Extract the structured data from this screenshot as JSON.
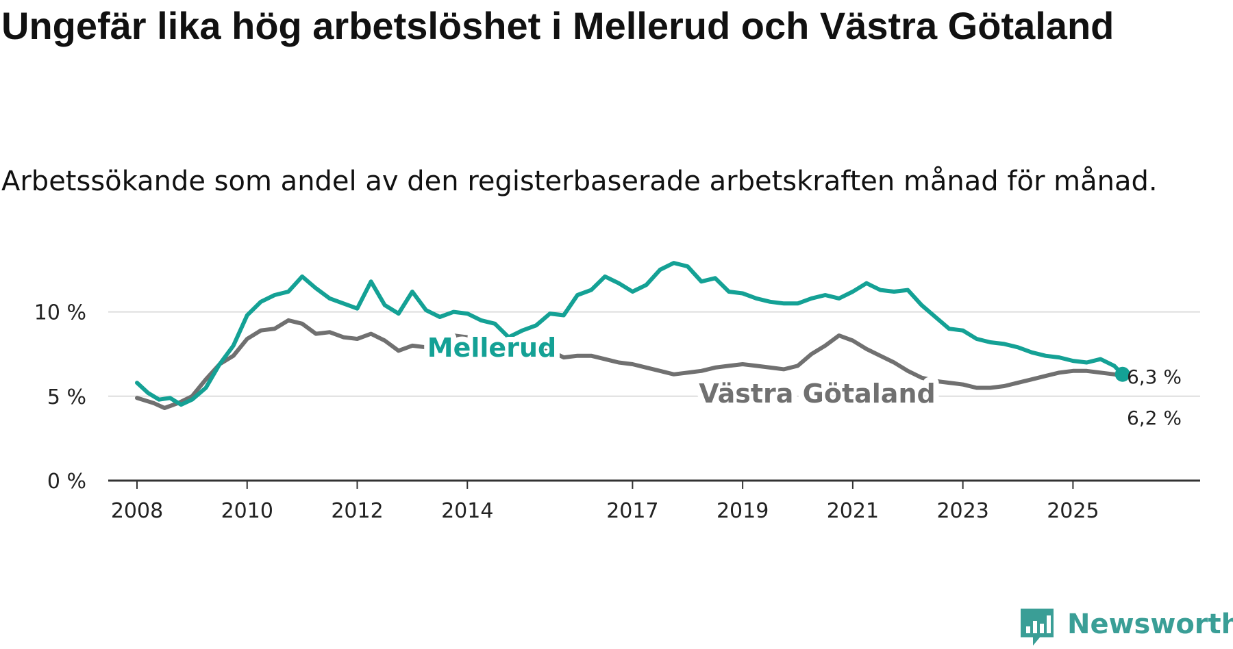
{
  "title": "Ungefär lika hög arbetslöshet i Mellerud och Västra Götaland",
  "subtitle": "Arbetssökande som andel av den registerbaserade arbetskraften månad för månad.",
  "brand": {
    "name": "Newsworthy",
    "icon": "newsworthy-bars-icon",
    "color": "#3a9e96"
  },
  "chart_data": {
    "type": "line",
    "title": "Ungefär lika hög arbetslöshet i Mellerud och Västra Götaland",
    "subtitle": "Arbetssökande som andel av den registerbaserade arbetskraften månad för månad.",
    "xlabel": "",
    "ylabel": "",
    "xlim": [
      2008.0,
      2026.6
    ],
    "ylim": [
      0,
      12.5
    ],
    "grid": true,
    "y_ticks": [
      {
        "value": 0,
        "label": "0 %"
      },
      {
        "value": 5,
        "label": "5 %"
      },
      {
        "value": 10,
        "label": "10 %"
      }
    ],
    "x_ticks": [
      {
        "value": 2008,
        "label": "2008"
      },
      {
        "value": 2010,
        "label": "2010"
      },
      {
        "value": 2012,
        "label": "2012"
      },
      {
        "value": 2014,
        "label": "2014"
      },
      {
        "value": 2017,
        "label": "2017"
      },
      {
        "value": 2019,
        "label": "2019"
      },
      {
        "value": 2021,
        "label": "2021"
      },
      {
        "value": 2023,
        "label": "2023"
      },
      {
        "value": 2025,
        "label": "2025"
      }
    ],
    "series": [
      {
        "name": "Västra Götaland",
        "color": "#707070",
        "end_label": "6,2 %",
        "points": [
          [
            2008.0,
            4.9
          ],
          [
            2008.3,
            4.6
          ],
          [
            2008.5,
            4.3
          ],
          [
            2008.75,
            4.6
          ],
          [
            2009.0,
            5.0
          ],
          [
            2009.25,
            6.0
          ],
          [
            2009.5,
            6.9
          ],
          [
            2009.75,
            7.4
          ],
          [
            2010.0,
            8.4
          ],
          [
            2010.25,
            8.9
          ],
          [
            2010.5,
            9.0
          ],
          [
            2010.75,
            9.5
          ],
          [
            2011.0,
            9.3
          ],
          [
            2011.25,
            8.7
          ],
          [
            2011.5,
            8.8
          ],
          [
            2011.75,
            8.5
          ],
          [
            2012.0,
            8.4
          ],
          [
            2012.25,
            8.7
          ],
          [
            2012.5,
            8.3
          ],
          [
            2012.75,
            7.7
          ],
          [
            2013.0,
            8.0
          ],
          [
            2013.25,
            7.9
          ],
          [
            2013.5,
            8.0
          ],
          [
            2013.75,
            8.6
          ],
          [
            2014.0,
            8.5
          ],
          [
            2014.25,
            8.2
          ],
          [
            2014.5,
            7.8
          ],
          [
            2014.75,
            8.1
          ],
          [
            2015.0,
            8.2
          ],
          [
            2015.25,
            8.2
          ],
          [
            2015.5,
            7.7
          ],
          [
            2015.75,
            7.3
          ],
          [
            2016.0,
            7.4
          ],
          [
            2016.25,
            7.4
          ],
          [
            2016.5,
            7.2
          ],
          [
            2016.75,
            7.0
          ],
          [
            2017.0,
            6.9
          ],
          [
            2017.25,
            6.7
          ],
          [
            2017.5,
            6.5
          ],
          [
            2017.75,
            6.3
          ],
          [
            2018.0,
            6.4
          ],
          [
            2018.25,
            6.5
          ],
          [
            2018.5,
            6.7
          ],
          [
            2018.75,
            6.8
          ],
          [
            2019.0,
            6.9
          ],
          [
            2019.25,
            6.8
          ],
          [
            2019.5,
            6.7
          ],
          [
            2019.75,
            6.6
          ],
          [
            2020.0,
            6.8
          ],
          [
            2020.25,
            7.5
          ],
          [
            2020.5,
            8.0
          ],
          [
            2020.75,
            8.6
          ],
          [
            2021.0,
            8.3
          ],
          [
            2021.25,
            7.8
          ],
          [
            2021.5,
            7.4
          ],
          [
            2021.75,
            7.0
          ],
          [
            2022.0,
            6.5
          ],
          [
            2022.25,
            6.1
          ],
          [
            2022.5,
            5.9
          ],
          [
            2022.75,
            5.8
          ],
          [
            2023.0,
            5.7
          ],
          [
            2023.25,
            5.5
          ],
          [
            2023.5,
            5.5
          ],
          [
            2023.75,
            5.6
          ],
          [
            2024.0,
            5.8
          ],
          [
            2024.25,
            6.0
          ],
          [
            2024.5,
            6.2
          ],
          [
            2024.75,
            6.4
          ],
          [
            2025.0,
            6.5
          ],
          [
            2025.25,
            6.5
          ],
          [
            2025.5,
            6.4
          ],
          [
            2025.75,
            6.3
          ],
          [
            2025.9,
            6.2
          ]
        ]
      },
      {
        "name": "Mellerud",
        "color": "#14a195",
        "end_label": "6,3 %",
        "points": [
          [
            2008.0,
            5.8
          ],
          [
            2008.2,
            5.2
          ],
          [
            2008.4,
            4.8
          ],
          [
            2008.6,
            4.9
          ],
          [
            2008.8,
            4.5
          ],
          [
            2009.0,
            4.8
          ],
          [
            2009.25,
            5.5
          ],
          [
            2009.5,
            6.9
          ],
          [
            2009.75,
            8.0
          ],
          [
            2010.0,
            9.8
          ],
          [
            2010.25,
            10.6
          ],
          [
            2010.5,
            11.0
          ],
          [
            2010.75,
            11.2
          ],
          [
            2011.0,
            12.1
          ],
          [
            2011.25,
            11.4
          ],
          [
            2011.5,
            10.8
          ],
          [
            2011.75,
            10.5
          ],
          [
            2012.0,
            10.2
          ],
          [
            2012.25,
            11.8
          ],
          [
            2012.5,
            10.4
          ],
          [
            2012.75,
            9.9
          ],
          [
            2013.0,
            11.2
          ],
          [
            2013.25,
            10.1
          ],
          [
            2013.5,
            9.7
          ],
          [
            2013.75,
            10.0
          ],
          [
            2014.0,
            9.9
          ],
          [
            2014.25,
            9.5
          ],
          [
            2014.5,
            9.3
          ],
          [
            2014.75,
            8.5
          ],
          [
            2015.0,
            8.9
          ],
          [
            2015.25,
            9.2
          ],
          [
            2015.5,
            9.9
          ],
          [
            2015.75,
            9.8
          ],
          [
            2016.0,
            11.0
          ],
          [
            2016.25,
            11.3
          ],
          [
            2016.5,
            12.1
          ],
          [
            2016.75,
            11.7
          ],
          [
            2017.0,
            11.2
          ],
          [
            2017.25,
            11.6
          ],
          [
            2017.5,
            12.5
          ],
          [
            2017.75,
            12.9
          ],
          [
            2018.0,
            12.7
          ],
          [
            2018.25,
            11.8
          ],
          [
            2018.5,
            12.0
          ],
          [
            2018.75,
            11.2
          ],
          [
            2019.0,
            11.1
          ],
          [
            2019.25,
            10.8
          ],
          [
            2019.5,
            10.6
          ],
          [
            2019.75,
            10.5
          ],
          [
            2020.0,
            10.5
          ],
          [
            2020.25,
            10.8
          ],
          [
            2020.5,
            11.0
          ],
          [
            2020.75,
            10.8
          ],
          [
            2021.0,
            11.2
          ],
          [
            2021.25,
            11.7
          ],
          [
            2021.5,
            11.3
          ],
          [
            2021.75,
            11.2
          ],
          [
            2022.0,
            11.3
          ],
          [
            2022.25,
            10.4
          ],
          [
            2022.5,
            9.7
          ],
          [
            2022.75,
            9.0
          ],
          [
            2023.0,
            8.9
          ],
          [
            2023.25,
            8.4
          ],
          [
            2023.5,
            8.2
          ],
          [
            2023.75,
            8.1
          ],
          [
            2024.0,
            7.9
          ],
          [
            2024.25,
            7.6
          ],
          [
            2024.5,
            7.4
          ],
          [
            2024.75,
            7.3
          ],
          [
            2025.0,
            7.1
          ],
          [
            2025.25,
            7.0
          ],
          [
            2025.5,
            7.2
          ],
          [
            2025.75,
            6.8
          ],
          [
            2025.9,
            6.3
          ]
        ]
      }
    ]
  }
}
